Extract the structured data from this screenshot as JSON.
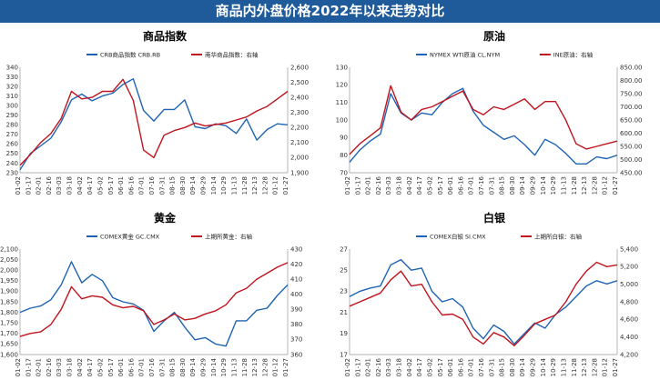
{
  "banner": {
    "title": "商品内外盘价格2022年以来走势对比"
  },
  "chart_data": [
    {
      "type": "line",
      "title": "商品指数",
      "categories": [
        "01-02",
        "01-17",
        "02-01",
        "02-16",
        "03-03",
        "03-18",
        "04-02",
        "04-17",
        "05-02",
        "05-17",
        "06-01",
        "06-16",
        "07-01",
        "07-16",
        "07-31",
        "08-15",
        "08-30",
        "09-14",
        "09-29",
        "10-14",
        "10-29",
        "11-13",
        "11-28",
        "12-13",
        "12-28",
        "01-12",
        "01-27"
      ],
      "left_axis": {
        "min": 230,
        "max": 340,
        "step": 10
      },
      "right_axis": {
        "min": 1900,
        "max": 2600,
        "step": 100,
        "format": "comma"
      },
      "series": [
        {
          "name": "CRB商品指数  CRB.RB",
          "axis": "left",
          "color": "#1f64b4",
          "values": [
            233,
            250,
            258,
            266,
            283,
            306,
            312,
            305,
            310,
            313,
            322,
            328,
            295,
            284,
            296,
            296,
            306,
            278,
            276,
            281,
            279,
            271,
            286,
            264,
            275,
            281,
            280
          ]
        },
        {
          "name": "南华商品指数：右轴",
          "axis": "right",
          "color": "#c0141e",
          "values": [
            1950,
            2020,
            2100,
            2160,
            2260,
            2440,
            2390,
            2400,
            2440,
            2440,
            2520,
            2380,
            2050,
            2000,
            2150,
            2180,
            2200,
            2230,
            2210,
            2220,
            2230,
            2250,
            2270,
            2310,
            2340,
            2390,
            2440
          ]
        }
      ]
    },
    {
      "type": "line",
      "title": "原油",
      "categories": [
        "01-02",
        "01-17",
        "02-01",
        "02-16",
        "03-03",
        "03-18",
        "04-02",
        "04-17",
        "05-02",
        "05-17",
        "06-01",
        "06-16",
        "07-01",
        "07-16",
        "07-31",
        "08-15",
        "08-30",
        "09-14",
        "09-29",
        "10-14",
        "10-29",
        "11-13",
        "11-28",
        "12-13",
        "12-28",
        "01-12",
        "01-27"
      ],
      "left_axis": {
        "min": 70,
        "max": 130,
        "step": 10
      },
      "right_axis": {
        "min": 450,
        "max": 850,
        "step": 50,
        "format": "fixed2"
      },
      "series": [
        {
          "name": "NYMEX WTI原油  CL.NYM",
          "axis": "left",
          "color": "#1f64b4",
          "values": [
            76,
            83,
            88,
            92,
            115,
            104,
            100,
            104,
            103,
            110,
            115,
            118,
            105,
            97,
            93,
            89,
            91,
            86,
            80,
            89,
            86,
            81,
            75,
            75,
            79,
            78,
            80
          ]
        },
        {
          "name": "INE原油：右轴",
          "axis": "right",
          "color": "#c0141e",
          "values": [
            520,
            560,
            590,
            620,
            780,
            680,
            650,
            690,
            700,
            720,
            740,
            760,
            690,
            670,
            700,
            690,
            710,
            730,
            690,
            720,
            720,
            650,
            560,
            540,
            550,
            560,
            570
          ]
        }
      ]
    },
    {
      "type": "line",
      "title": "黄金",
      "categories": [
        "01-02",
        "01-17",
        "02-01",
        "02-16",
        "03-03",
        "03-18",
        "04-02",
        "04-17",
        "05-02",
        "05-17",
        "06-01",
        "06-16",
        "07-01",
        "07-16",
        "07-31",
        "08-15",
        "08-30",
        "09-14",
        "09-29",
        "10-14",
        "10-29",
        "11-13",
        "11-28",
        "12-13",
        "12-28",
        "01-12",
        "01-27"
      ],
      "left_axis": {
        "min": 1600,
        "max": 2100,
        "step": 50,
        "format": "comma"
      },
      "right_axis": {
        "min": 360,
        "max": 430,
        "step": 10
      },
      "series": [
        {
          "name": "COMEX黄金  GC.CMX",
          "axis": "left",
          "color": "#1f64b4",
          "values": [
            1800,
            1820,
            1830,
            1860,
            1930,
            2040,
            1940,
            1980,
            1950,
            1870,
            1850,
            1840,
            1810,
            1710,
            1760,
            1800,
            1730,
            1670,
            1680,
            1650,
            1640,
            1760,
            1760,
            1810,
            1820,
            1880,
            1930
          ]
        },
        {
          "name": "上期所黄金：右轴",
          "axis": "right",
          "color": "#c0141e",
          "values": [
            372,
            374,
            375,
            380,
            390,
            405,
            397,
            399,
            398,
            393,
            391,
            392,
            389,
            380,
            383,
            387,
            383,
            384,
            387,
            389,
            393,
            401,
            404,
            410,
            414,
            418,
            421
          ]
        }
      ]
    },
    {
      "type": "line",
      "title": "白银",
      "categories": [
        "01-02",
        "01-17",
        "02-01",
        "02-16",
        "03-03",
        "03-18",
        "04-02",
        "04-17",
        "05-02",
        "05-17",
        "06-01",
        "06-16",
        "07-01",
        "07-16",
        "07-31",
        "08-15",
        "08-30",
        "09-14",
        "09-29",
        "10-14",
        "10-29",
        "11-13",
        "11-28",
        "12-13",
        "12-28",
        "01-12",
        "01-27"
      ],
      "left_axis": {
        "min": 17,
        "max": 27,
        "step": 2
      },
      "right_axis": {
        "min": 4200,
        "max": 5400,
        "step": 200,
        "format": "comma"
      },
      "series": [
        {
          "name": "COMEX白银  SI.CMX",
          "axis": "left",
          "color": "#1f64b4",
          "values": [
            22.5,
            23.0,
            23.3,
            23.5,
            25.5,
            26.0,
            25.0,
            25.2,
            23.0,
            22.0,
            22.3,
            21.5,
            19.5,
            18.5,
            19.8,
            19.2,
            18.0,
            19.0,
            20.0,
            19.5,
            20.8,
            21.5,
            22.5,
            23.5,
            24.0,
            23.7,
            24.0
          ]
        },
        {
          "name": "上期所白银：右轴",
          "axis": "right",
          "color": "#c0141e",
          "values": [
            4750,
            4800,
            4850,
            4900,
            5050,
            5150,
            4980,
            5000,
            4800,
            4650,
            4660,
            4600,
            4400,
            4320,
            4450,
            4400,
            4300,
            4420,
            4550,
            4600,
            4650,
            4800,
            5000,
            5150,
            5250,
            5200,
            5220
          ]
        }
      ]
    }
  ]
}
